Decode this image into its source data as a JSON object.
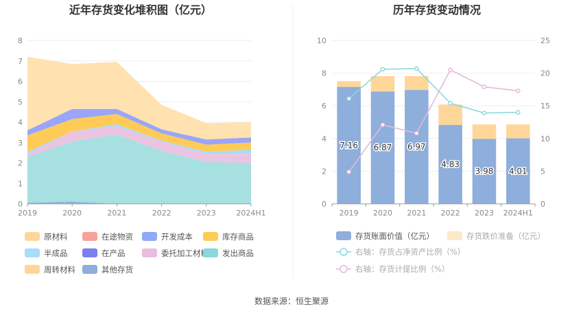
{
  "source_label": "数据来源：恒生聚源",
  "chart_data": [
    {
      "type": "area",
      "title": "近年存货变化堆积图（亿元）",
      "categories": [
        "2019",
        "2020",
        "2021",
        "2022",
        "2023",
        "2024H1"
      ],
      "ylim": [
        0,
        8
      ],
      "yticks": [
        "0",
        "1",
        "2",
        "3",
        "4",
        "5",
        "6",
        "7",
        "8"
      ],
      "grid": true,
      "legend_position": "bottom",
      "series": [
        {
          "name": "其他存货",
          "color": "#8eaedb",
          "values": [
            0.05,
            0.1,
            0.0,
            0.0,
            0.0,
            0.0
          ]
        },
        {
          "name": "周转材料",
          "color": "#ffd699",
          "values": [
            0.0,
            0.0,
            0.0,
            0.0,
            0.0,
            0.0
          ]
        },
        {
          "name": "发出商品",
          "color": "#a6e0e0",
          "values": [
            2.25,
            2.95,
            3.4,
            2.6,
            2.05,
            2.0
          ]
        },
        {
          "name": "委托加工材料",
          "color": "#eac4e0",
          "values": [
            0.15,
            0.5,
            0.4,
            0.45,
            0.4,
            0.45
          ]
        },
        {
          "name": "在产品",
          "color": "#7b7ff0",
          "values": [
            0.0,
            0.0,
            0.0,
            0.0,
            0.0,
            0.0
          ]
        },
        {
          "name": "半成品",
          "color": "#a8dcf7",
          "values": [
            0.1,
            0.0,
            0.1,
            0.05,
            0.1,
            0.2
          ]
        },
        {
          "name": "库存商品",
          "color": "#ffcb57",
          "values": [
            0.8,
            0.6,
            0.5,
            0.35,
            0.35,
            0.35
          ]
        },
        {
          "name": "开发成本",
          "color": "#9aa5f7",
          "values": [
            0.25,
            0.5,
            0.25,
            0.2,
            0.25,
            0.25
          ]
        },
        {
          "name": "在途物资",
          "color": "#f7a299",
          "values": [
            0.0,
            0.0,
            0.0,
            0.0,
            0.0,
            0.0
          ]
        },
        {
          "name": "原材料",
          "color": "#ffe2b0",
          "values": [
            3.6,
            2.2,
            2.3,
            1.2,
            0.8,
            0.75
          ]
        }
      ],
      "legend_order": [
        "原材料",
        "在途物资",
        "开发成本",
        "库存商品",
        "半成品",
        "在产品",
        "委托加工材料",
        "发出商品",
        "周转材料",
        "其他存货"
      ],
      "legend_colors": {
        "原材料": "#ffd699",
        "在途物资": "#f7a299",
        "开发成本": "#8fa8f7",
        "库存商品": "#ffcb57",
        "半成品": "#a8dcf7",
        "在产品": "#7b7ff0",
        "委托加工材料": "#e8bde0",
        "发出商品": "#88d8dc",
        "周转材料": "#ffd699",
        "其他存货": "#8eaedb"
      }
    },
    {
      "type": "bar",
      "title": "历年存货变动情况",
      "categories": [
        "2019",
        "2020",
        "2021",
        "2022",
        "2023",
        "2024H1"
      ],
      "ylim": [
        0,
        10
      ],
      "yticks": [
        "0",
        "2",
        "4",
        "6",
        "8",
        "10"
      ],
      "y2lim": [
        0,
        25
      ],
      "y2ticks": [
        "0",
        "5",
        "10",
        "15",
        "20",
        "25"
      ],
      "grid": true,
      "legend_position": "bottom",
      "series": [
        {
          "name": "存货账面价值（亿元）",
          "color": "#8eaedb",
          "axis": "left",
          "kind": "bar",
          "values": [
            7.16,
            6.87,
            6.97,
            4.83,
            3.98,
            4.01
          ],
          "labels": [
            "7.16",
            "6.87",
            "6.97",
            "4.83",
            "3.98",
            "4.01"
          ]
        },
        {
          "name": "存货跌价准备（亿元）",
          "color": "#ffd699",
          "axis": "left",
          "kind": "bar",
          "values": [
            0.35,
            0.95,
            0.85,
            1.25,
            0.88,
            0.85
          ]
        },
        {
          "name": "右轴：存货占净资产比例（%）",
          "color": "#8ed8dc",
          "axis": "right",
          "kind": "line",
          "values": [
            16.1,
            20.6,
            20.7,
            15.4,
            13.9,
            14.0
          ]
        },
        {
          "name": "右轴：存货计提比例（%）",
          "color": "#e6b8dc",
          "axis": "right",
          "kind": "line",
          "values": [
            4.9,
            12.1,
            10.8,
            20.5,
            17.9,
            17.3
          ]
        }
      ]
    }
  ]
}
